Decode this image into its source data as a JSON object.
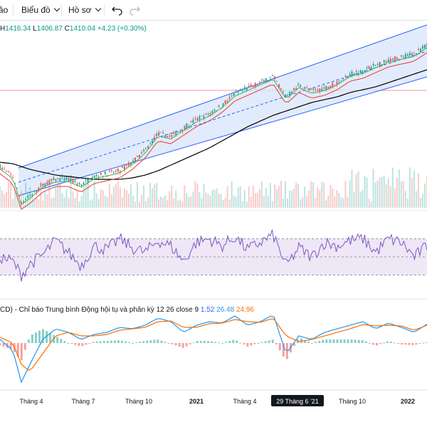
{
  "toolbar": {
    "partial_item": "ảo",
    "chart_menu": "Biểu đồ",
    "profile_menu": "Hồ sơ",
    "undo_icon": "undo-icon",
    "redo_icon": "redo-icon"
  },
  "legend": {
    "high_label": "H",
    "high": "1416.34",
    "low_label": "L",
    "low": "1406.87",
    "close_label": "C",
    "close": "1410.04",
    "change": "+4.23 (+0.30%)"
  },
  "macd_legend": {
    "prefix": "CD)",
    "title": "- Chỉ báo Trung bình Động hội tụ và phân kỳ 12 26 close 9",
    "hist": "1.52",
    "macd": "26.48",
    "signal": "24.96"
  },
  "colors": {
    "up": "#26a69a",
    "down": "#ef5350",
    "channel_fill": "#dbe6fb",
    "channel_line": "#2962ff",
    "sma200": "#000000",
    "ma_red": "#e53935",
    "ma_green": "#4caf50",
    "rsi": "#7e57c2",
    "rsi_band": "#ede7f6",
    "macd": "#2196f3",
    "signal": "#ff6d00",
    "hline": "#ef9a9a"
  },
  "chart_data": {
    "type": "line",
    "x_axis_labels": [
      "Tháng 4",
      "Tháng 7",
      "Tháng 10",
      "2021",
      "Tháng 4",
      "29 Tháng 6 '21",
      "Tháng 10",
      "2022"
    ],
    "bold_labels": [
      "2021",
      "2022"
    ],
    "crosshair_label": "29 Tháng 6 '21",
    "price": {
      "x": [
        0,
        0.03,
        0.05,
        0.07,
        0.1,
        0.13,
        0.16,
        0.19,
        0.22,
        0.25,
        0.28,
        0.31,
        0.34,
        0.37,
        0.4,
        0.43,
        0.46,
        0.49,
        0.52,
        0.55,
        0.58,
        0.61,
        0.64,
        0.67,
        0.7,
        0.73,
        0.76,
        0.79,
        0.82,
        0.85,
        0.88,
        0.91,
        0.94,
        0.97,
        1.0
      ],
      "close": [
        985,
        950,
        860,
        880,
        920,
        940,
        940,
        920,
        950,
        960,
        970,
        1000,
        1040,
        1100,
        1090,
        1120,
        1150,
        1170,
        1200,
        1240,
        1260,
        1280,
        1300,
        1230,
        1270,
        1250,
        1260,
        1280,
        1310,
        1320,
        1340,
        1360,
        1370,
        1380,
        1410
      ]
    },
    "sma200": [
      1000,
      995,
      985,
      975,
      965,
      955,
      950,
      945,
      940,
      940,
      940,
      945,
      955,
      970,
      990,
      1010,
      1030,
      1050,
      1075,
      1100,
      1125,
      1145,
      1165,
      1180,
      1195,
      1210,
      1220,
      1230,
      1245,
      1255,
      1265,
      1280,
      1295,
      1310,
      1325
    ],
    "rsi_range": [
      30,
      70
    ],
    "rsi": [
      50,
      45,
      30,
      42,
      52,
      68,
      55,
      40,
      62,
      58,
      70,
      60,
      55,
      68,
      62,
      45,
      66,
      70,
      62,
      72,
      58,
      66,
      74,
      40,
      60,
      50,
      66,
      62,
      68,
      70,
      55,
      70,
      66,
      50,
      62
    ],
    "macd": {
      "macd": [
        5,
        -10,
        -55,
        -30,
        5,
        20,
        15,
        5,
        12,
        15,
        22,
        20,
        25,
        35,
        30,
        15,
        25,
        30,
        28,
        38,
        25,
        30,
        40,
        -15,
        10,
        5,
        15,
        20,
        25,
        30,
        20,
        28,
        22,
        15,
        26.48
      ],
      "signal": [
        8,
        0,
        -30,
        -40,
        -15,
        10,
        15,
        10,
        10,
        12,
        18,
        20,
        22,
        30,
        31,
        22,
        22,
        27,
        28,
        33,
        30,
        29,
        35,
        10,
        2,
        5,
        10,
        15,
        20,
        26,
        24,
        25,
        24,
        18,
        24.96
      ]
    }
  }
}
